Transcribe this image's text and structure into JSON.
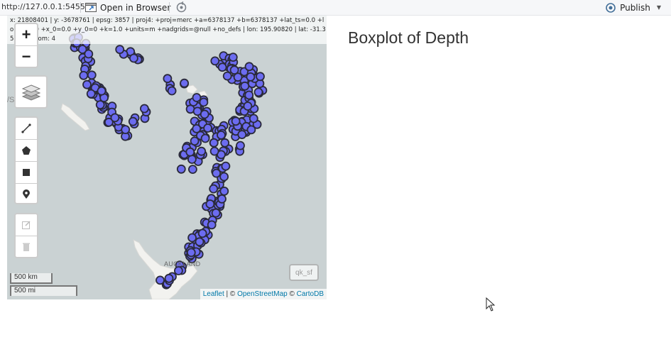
{
  "toolbar": {
    "url": "http://127.0.0.1:5455",
    "open_in_browser_label": "Open in Browser",
    "publish_label": "Publish"
  },
  "map": {
    "coordinates_text": "x: 21808401 | y: -3678761 | epsg: 3857 | proj4: +proj=merc +a=6378137 +b=6378137 +lat_ts=0.0 +lon_0=0.0 +x_0=0.0 +y_0=0 +k=1.0 +units=m +nadgrids=@null +no_defs | lon: 195.90820 | lat: -31.35364 | zoom: 4",
    "zoom_in_label": "+",
    "zoom_out_label": "−",
    "scale_km_label": "500 km",
    "scale_mi_label": "500 mi",
    "layer_button_label": "qk_sf",
    "place_label_auckland": "AUCKLAND",
    "place_label_fiji": "/S",
    "attribution": {
      "leaflet": "Leaflet",
      "separator1": " | © ",
      "osm": "OpenStreetMap",
      "separator2": " © ",
      "cartodb": "CartoDB"
    },
    "marker_fill_color": "#6c6cf0",
    "marker_stroke_color": "#2a2a3a"
  },
  "panel": {
    "title": "Boxplot of Depth"
  }
}
